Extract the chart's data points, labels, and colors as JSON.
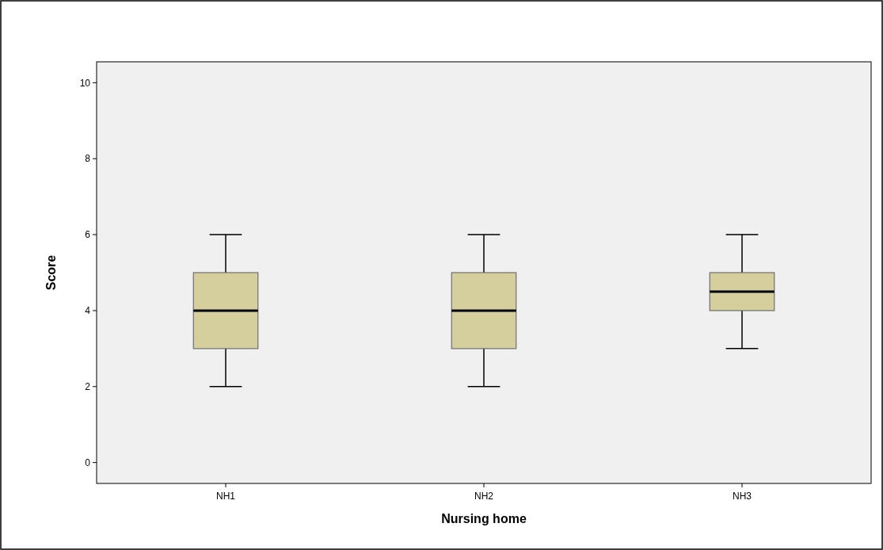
{
  "chart_data": {
    "type": "box",
    "xlabel": "Nursing home",
    "ylabel": "Score",
    "categories": [
      "NH1",
      "NH2",
      "NH3"
    ],
    "ylim": [
      -0.55,
      10.55
    ],
    "yticks": [
      0,
      2,
      4,
      6,
      8,
      10
    ],
    "grid": false,
    "series": [
      {
        "color": "#d5cf9e",
        "boxes": [
          {
            "low": 2,
            "q1": 3,
            "median": 4,
            "q3": 5,
            "high": 6
          },
          {
            "low": 2,
            "q1": 3,
            "median": 4,
            "q3": 5,
            "high": 6
          },
          {
            "low": 3,
            "q1": 4,
            "median": 4.5,
            "q3": 5,
            "high": 6
          }
        ]
      }
    ]
  }
}
